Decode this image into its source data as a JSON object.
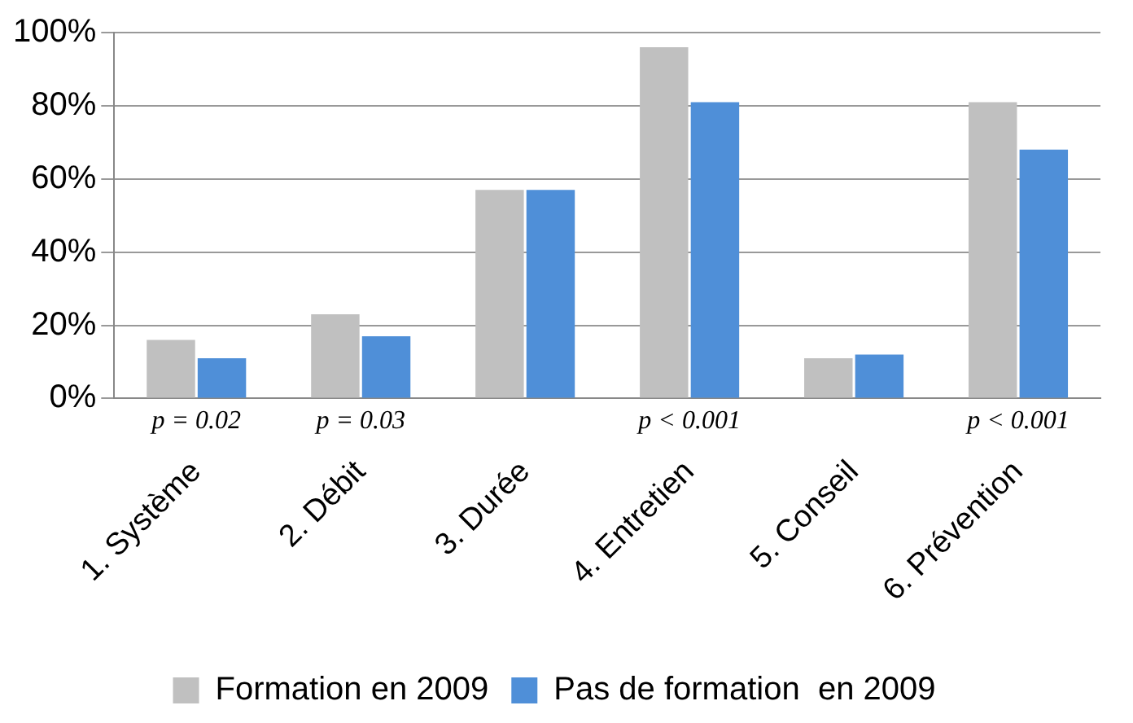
{
  "chart_data": {
    "type": "bar",
    "categories": [
      "1. Système",
      "2. Débit",
      "3. Durée",
      "4. Entretien",
      "5. Conseil",
      "6. Prévention"
    ],
    "series": [
      {
        "name": "Formation en 2009",
        "color": "#c0c0c0",
        "values": [
          16,
          23,
          57,
          96,
          11,
          81
        ]
      },
      {
        "name": "Pas de formation  en 2009",
        "color": "#4f8fd8",
        "values": [
          11,
          17,
          57,
          81,
          12,
          68
        ]
      }
    ],
    "ylim": [
      0,
      100
    ],
    "yticks": [
      {
        "value": 0,
        "label": "0%"
      },
      {
        "value": 20,
        "label": "20%"
      },
      {
        "value": 40,
        "label": "40%"
      },
      {
        "value": 60,
        "label": "60%"
      },
      {
        "value": 80,
        "label": "80%"
      },
      {
        "value": 100,
        "label": "100%"
      }
    ],
    "grid": "y",
    "legend": "bottom",
    "annotations": [
      "p = 0.02",
      "p = 0.03",
      "p < 0.001",
      "p < 0.001"
    ]
  }
}
